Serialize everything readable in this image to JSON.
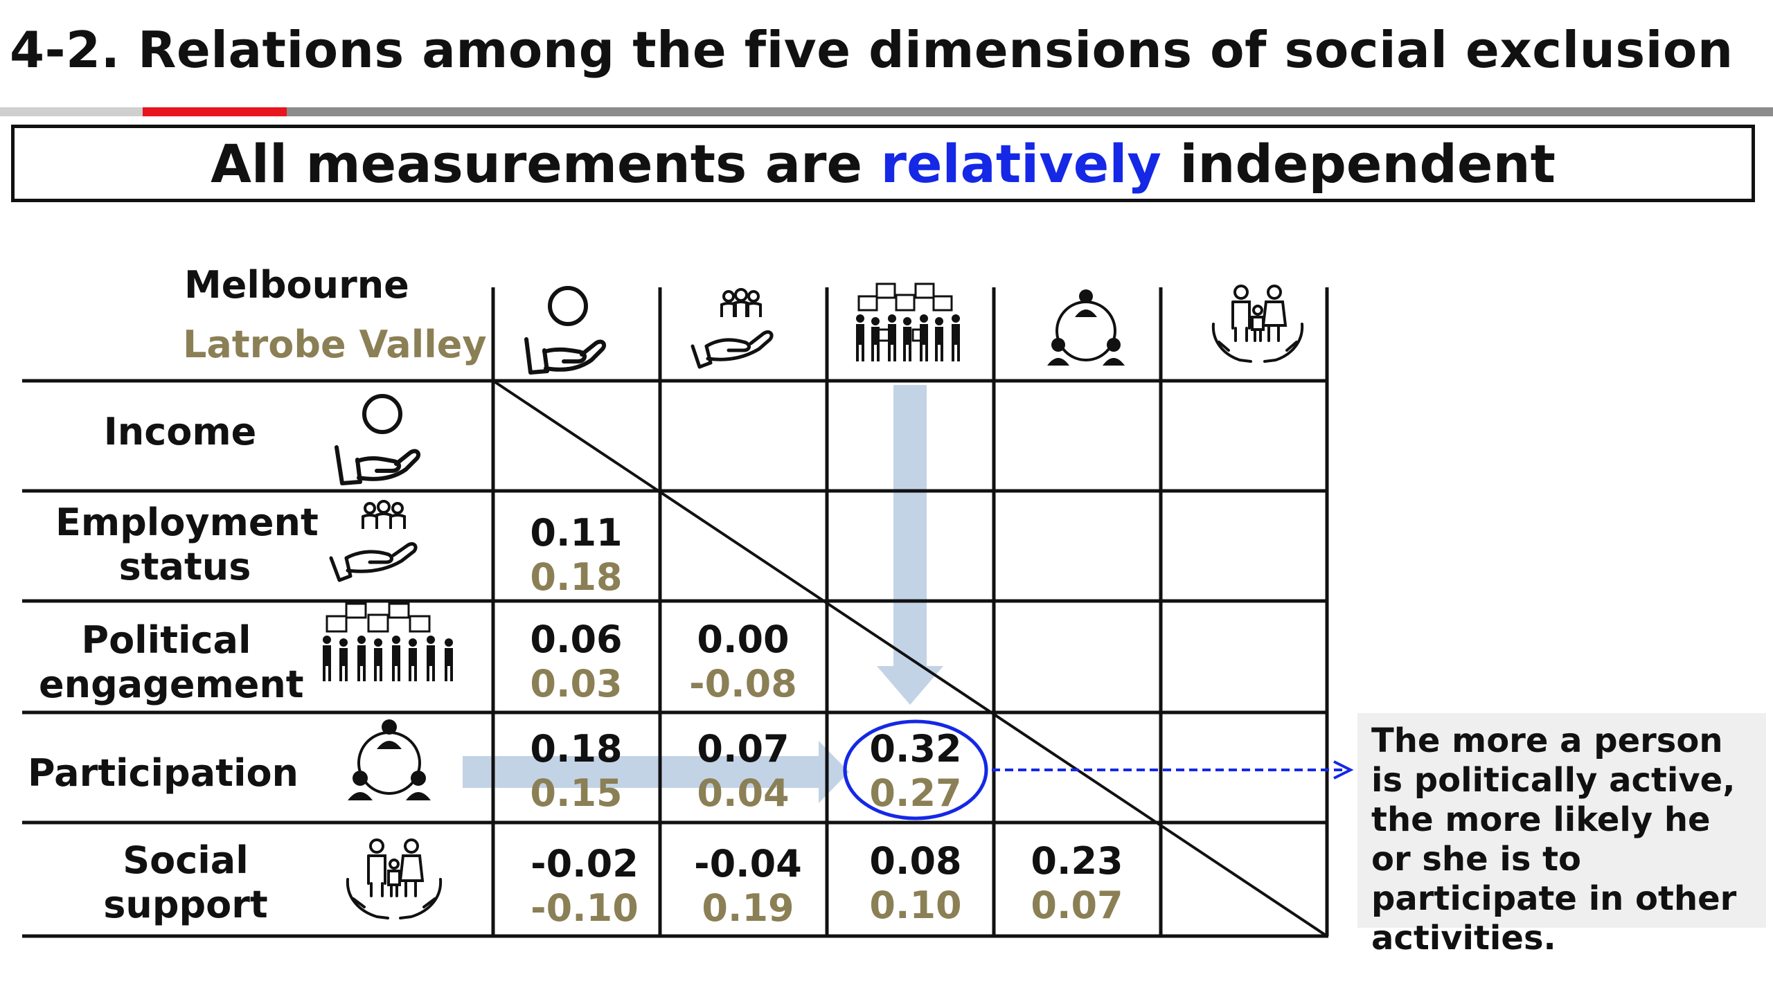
{
  "slide": {
    "title": "4-2. Relations among the five dimensions of social exclusion",
    "banner": {
      "before": "All measurements are ",
      "highlight": "relatively",
      "after": " independent",
      "highlight_color": "#1428e6"
    }
  },
  "legend": {
    "melbourne": "Melbourne",
    "latrobe": "Latrobe Valley",
    "latrobe_color": "#8b7f55"
  },
  "dimensions": [
    {
      "label_line1": "Income",
      "label_line2": "",
      "icon": "hand-person-icon"
    },
    {
      "label_line1": "Employment",
      "label_line2": "status",
      "icon": "hand-group-icon"
    },
    {
      "label_line1": "Political",
      "label_line2": "engagement",
      "icon": "protest-crowd-icon"
    },
    {
      "label_line1": "Participation",
      "label_line2": "",
      "icon": "network-people-icon"
    },
    {
      "label_line1": "Social",
      "label_line2": "support",
      "icon": "hands-family-icon"
    }
  ],
  "correlations": {
    "employment_income": {
      "melbourne": "0.11",
      "latrobe": "0.18"
    },
    "political_income": {
      "melbourne": "0.06",
      "latrobe": "0.03"
    },
    "political_employment": {
      "melbourne": "0.00",
      "latrobe": "-0.08"
    },
    "participation_income": {
      "melbourne": "0.18",
      "latrobe": "0.15"
    },
    "participation_employment": {
      "melbourne": "0.07",
      "latrobe": "0.04"
    },
    "participation_political": {
      "melbourne": "0.32",
      "latrobe": "0.27"
    },
    "social_income": {
      "melbourne": "-0.02",
      "latrobe": "-0.10"
    },
    "social_employment": {
      "melbourne": "-0.04",
      "latrobe": "0.19"
    },
    "social_political": {
      "melbourne": "0.08",
      "latrobe": "0.10"
    },
    "social_participation": {
      "melbourne": "0.23",
      "latrobe": "0.07"
    }
  },
  "callout": {
    "text": "The more a person  is politically active, the more likely he or she is to participate in other activities."
  },
  "colors": {
    "title_rule": "#8c8c8c",
    "title_rule_accent": "#e8141e",
    "highlight_ellipse": "#1428e6",
    "arrow": "#c3d3e6",
    "dashed_arrow": "#1428e6"
  }
}
